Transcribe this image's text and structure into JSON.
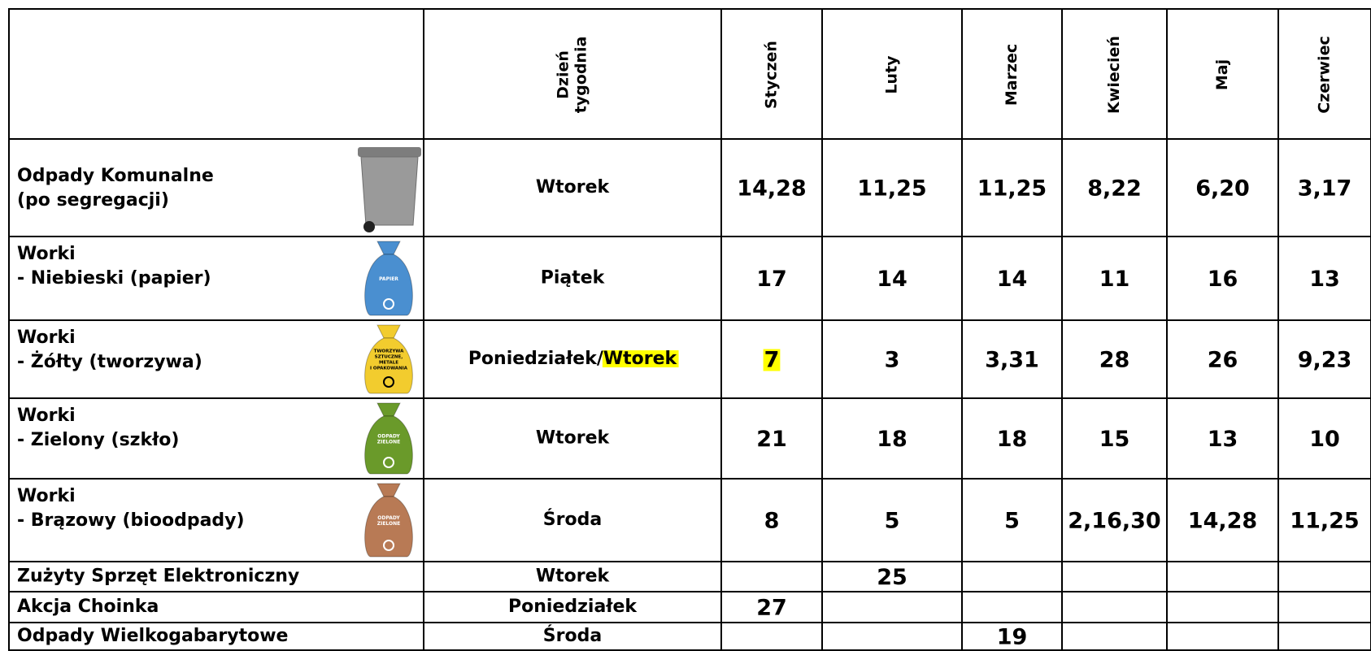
{
  "table": {
    "header": {
      "day": [
        "Dzień",
        "tygodnia"
      ],
      "months": [
        "Styczeń",
        "Luty",
        "Marzec",
        "Kwiecień",
        "Maj",
        "Czerwiec"
      ]
    },
    "rows": [
      {
        "label": [
          "Odpady Komunalne",
          "(po segregacji)"
        ],
        "icon": {
          "kind": "bin",
          "color": "#9a9a9a"
        },
        "day": [
          {
            "text": "Wtorek"
          }
        ],
        "values": [
          "14,28",
          "11,25",
          "11,25",
          "8,22",
          "6,20",
          "3,17"
        ]
      },
      {
        "label": [
          "Worki",
          "- Niebieski (papier)"
        ],
        "icon": {
          "kind": "bag",
          "color": "#4a8fd0",
          "text": [
            "PAPIER"
          ]
        },
        "day": [
          {
            "text": "Piątek"
          }
        ],
        "values": [
          "17",
          "14",
          "14",
          "11",
          "16",
          "13"
        ]
      },
      {
        "label": [
          "Worki",
          "- Żółty (tworzywa)"
        ],
        "icon": {
          "kind": "bag",
          "color": "#f2cc2e",
          "text": [
            "TWORZYWA",
            "SZTUCZNE,",
            "METALE",
            "I OPAKOWANIA"
          ]
        },
        "day": [
          {
            "text": "Poniedziałek/"
          },
          {
            "text": "Wtorek",
            "highlight": true
          }
        ],
        "values": [
          {
            "text": "7",
            "highlight": true
          },
          "3",
          "3,31",
          "28",
          "26",
          "9,23"
        ]
      },
      {
        "label": [
          "Worki",
          "- Zielony (szkło)"
        ],
        "icon": {
          "kind": "bag",
          "color": "#6a9a2a",
          "text": [
            "ODPADY",
            "ZIELONE"
          ]
        },
        "day": [
          {
            "text": "Wtorek"
          }
        ],
        "values": [
          "21",
          "18",
          "18",
          "15",
          "13",
          "10"
        ]
      },
      {
        "label": [
          "Worki",
          "- Brązowy (bioodpady)"
        ],
        "icon": {
          "kind": "bag",
          "color": "#b87a55",
          "text": [
            "ODPADY",
            "ZIELONE"
          ]
        },
        "day": [
          {
            "text": "Środa"
          }
        ],
        "values": [
          "8",
          "5",
          "5",
          "2,16,30",
          "14,28",
          "11,25"
        ]
      },
      {
        "label": [
          "Zużyty Sprzęt Elektroniczny"
        ],
        "day": [
          {
            "text": "Wtorek"
          }
        ],
        "values": [
          null,
          "25",
          null,
          null,
          null,
          null
        ]
      },
      {
        "label": [
          "Akcja Choinka"
        ],
        "day": [
          {
            "text": "Poniedziałek"
          }
        ],
        "values": [
          "27",
          null,
          null,
          null,
          null,
          null
        ]
      },
      {
        "label": [
          "Odpady Wielkogabarytowe"
        ],
        "day": [
          {
            "text": "Środa"
          }
        ],
        "values": [
          null,
          null,
          "19",
          null,
          null,
          null
        ]
      }
    ]
  }
}
